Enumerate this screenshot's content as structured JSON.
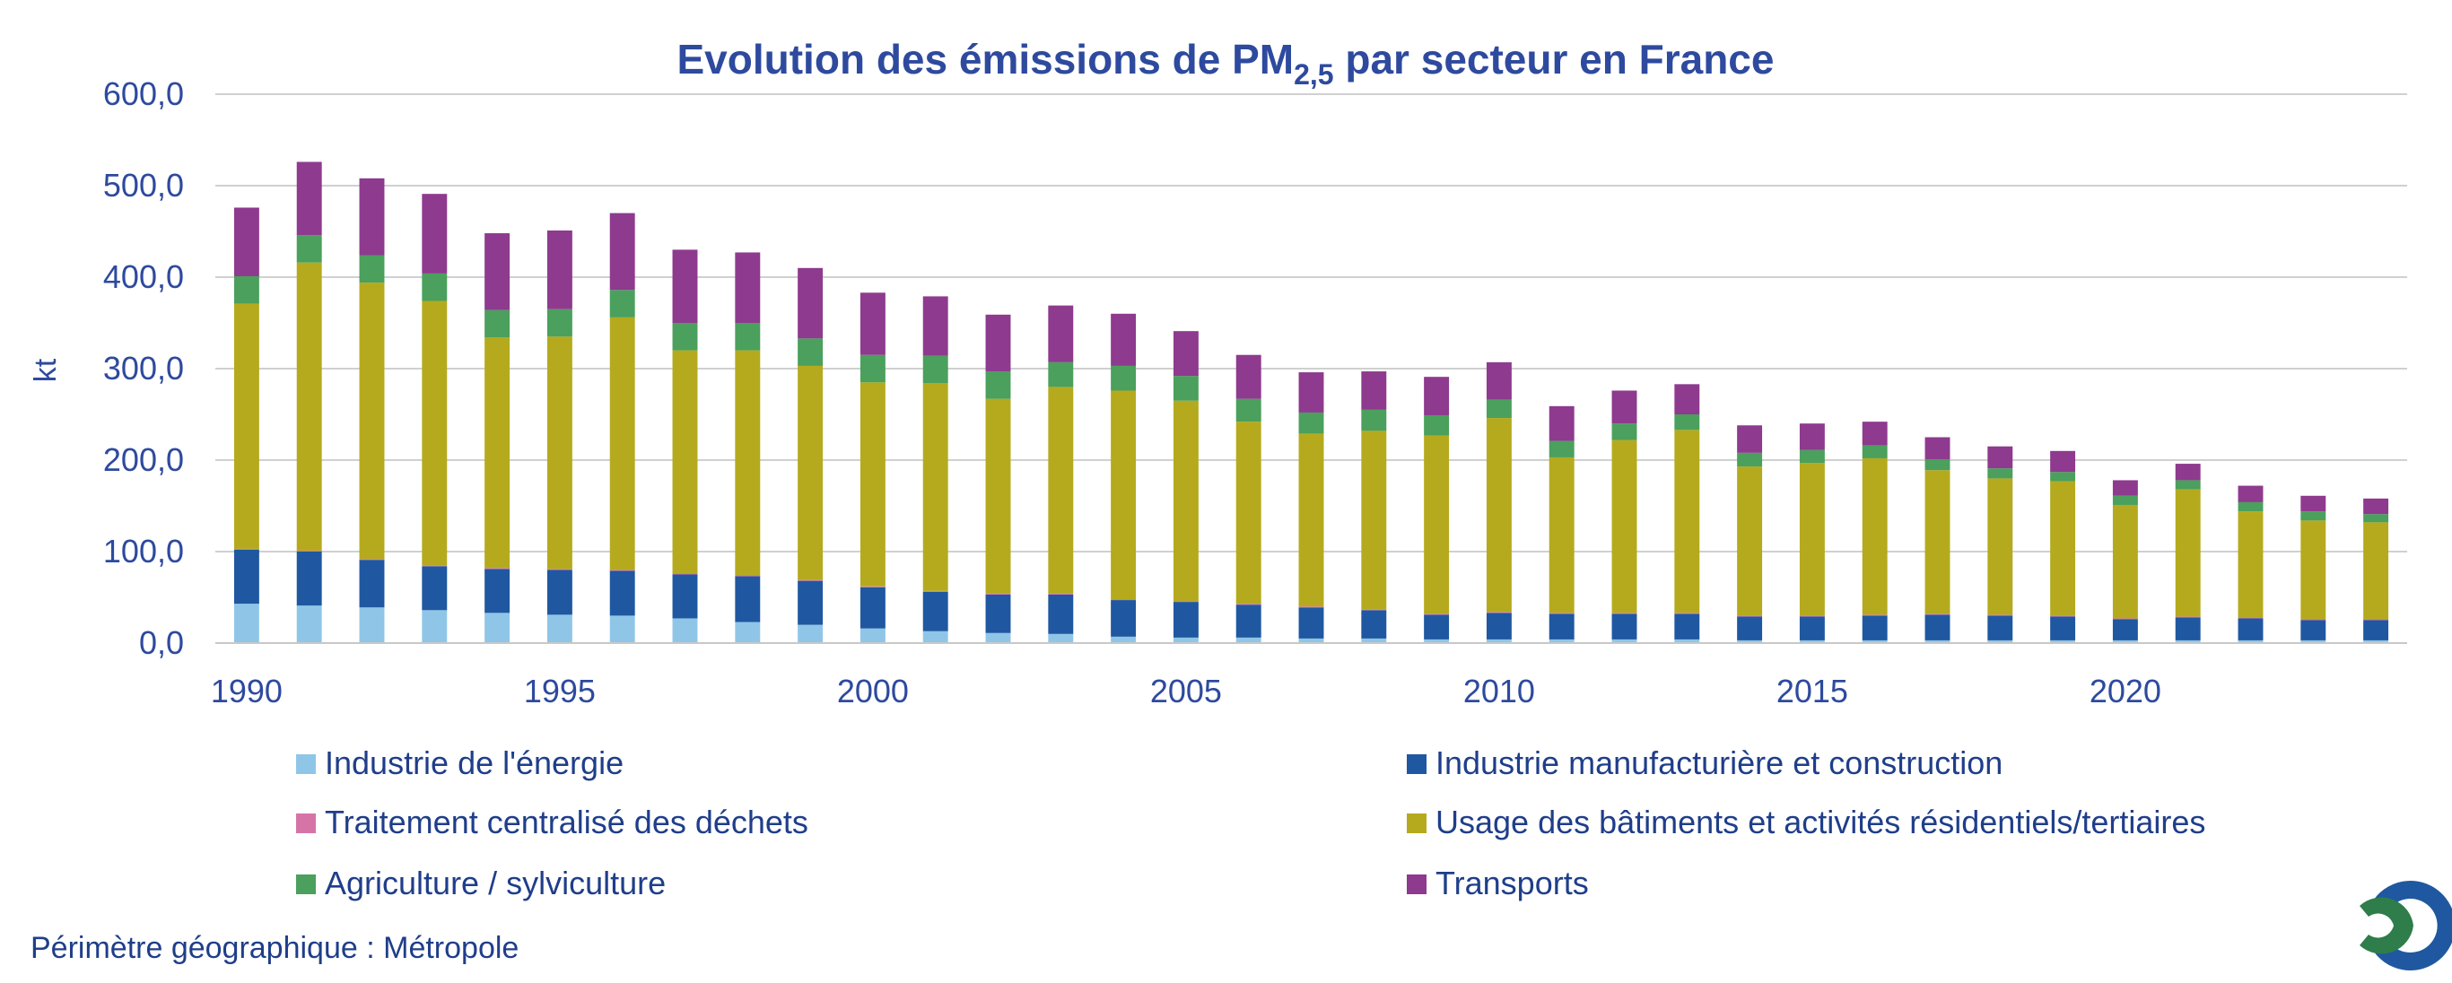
{
  "chart_data": {
    "type": "bar",
    "stacked": true,
    "title_prefix": "Evolution des émissions de PM",
    "title_subscript": "2,5",
    "title_suffix": " par secteur en France",
    "ylabel": "kt",
    "xlabel": "",
    "ylim": [
      0,
      600
    ],
    "y_ticks": [
      "0,0",
      "100,0",
      "200,0",
      "300,0",
      "400,0",
      "500,0",
      "600,0"
    ],
    "x_tick_labels": [
      "1990",
      "1995",
      "2000",
      "2005",
      "2010",
      "2015",
      "2020"
    ],
    "grid": true,
    "legend_position": "bottom",
    "categories": [
      "1990",
      "1991",
      "1992",
      "1993",
      "1994",
      "1995",
      "1996",
      "1997",
      "1998",
      "1999",
      "2000",
      "2001",
      "2002",
      "2003",
      "2004",
      "2005",
      "2006",
      "2007",
      "2008",
      "2009",
      "2010",
      "2011",
      "2012",
      "2013",
      "2014",
      "2015",
      "2016",
      "2017",
      "2018",
      "2019",
      "2020",
      "2021",
      "2022",
      "2023",
      "2024"
    ],
    "series": [
      {
        "name": "Industrie de l'énergie",
        "color": "#8fc6e8",
        "values": [
          43,
          41,
          39,
          36,
          33,
          31,
          30,
          27,
          23,
          20,
          16,
          13,
          11,
          10,
          7,
          6,
          6,
          5,
          5,
          4,
          4,
          4,
          4,
          4,
          3,
          3,
          3,
          3,
          3,
          3,
          3,
          3,
          3,
          3,
          3
        ]
      },
      {
        "name": "Industrie manufacturière et construction",
        "color": "#1f58a0",
        "values": [
          59,
          59,
          52,
          48,
          48,
          49,
          49,
          48,
          50,
          48,
          45,
          43,
          42,
          43,
          40,
          39,
          36,
          34,
          31,
          27,
          29,
          28,
          28,
          28,
          26,
          26,
          27,
          28,
          27,
          26,
          23,
          25,
          24,
          22,
          22
        ]
      },
      {
        "name": "Traitement centralisé des déchets",
        "color": "#d674a8",
        "values": [
          1,
          1,
          1,
          1,
          1,
          1,
          1,
          1,
          1,
          1,
          1,
          1,
          1,
          1,
          1,
          1,
          1,
          1,
          1,
          1,
          1,
          1,
          1,
          1,
          1,
          1,
          1,
          1,
          1,
          1,
          1,
          1,
          1,
          1,
          1
        ]
      },
      {
        "name": "Usage des bâtiments et activités résidentiels/tertiaires",
        "color": "#b5aa1d",
        "values": [
          268,
          315,
          302,
          289,
          252,
          254,
          276,
          244,
          246,
          234,
          223,
          227,
          213,
          226,
          228,
          219,
          199,
          189,
          195,
          195,
          212,
          170,
          189,
          200,
          163,
          167,
          171,
          157,
          149,
          147,
          124,
          139,
          116,
          108,
          106
        ]
      },
      {
        "name": "Agriculture / sylviculture",
        "color": "#4aa05c",
        "values": [
          30,
          30,
          30,
          30,
          30,
          30,
          30,
          30,
          30,
          30,
          30,
          30,
          30,
          27,
          27,
          27,
          25,
          23,
          23,
          22,
          20,
          18,
          18,
          17,
          15,
          14,
          14,
          12,
          11,
          10,
          10,
          10,
          10,
          10,
          9
        ]
      },
      {
        "name": "Transports",
        "color": "#8e3a8e",
        "values": [
          75,
          80,
          84,
          87,
          84,
          86,
          84,
          80,
          77,
          77,
          68,
          65,
          62,
          62,
          57,
          49,
          48,
          44,
          42,
          42,
          41,
          38,
          36,
          33,
          30,
          29,
          26,
          24,
          24,
          23,
          17,
          18,
          18,
          17,
          17
        ]
      }
    ]
  },
  "footer": {
    "perimeter_note": "Périmètre géographique : Métropole"
  },
  "colors": {
    "title": "#2e4a9e",
    "axis_text": "#2e4a9e",
    "grid": "#d0d0d0"
  }
}
